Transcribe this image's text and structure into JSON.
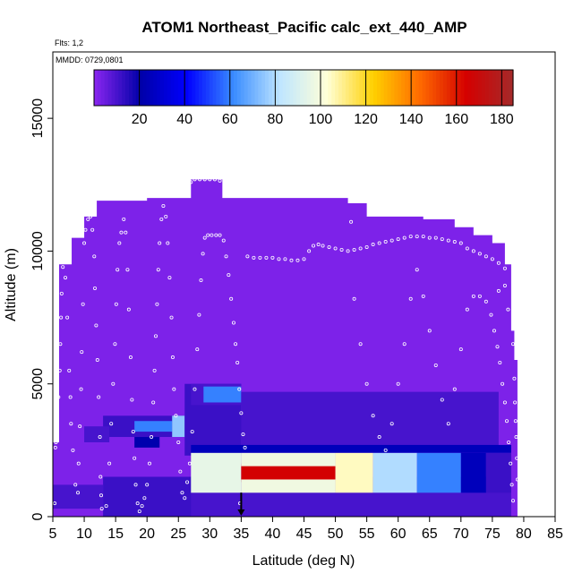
{
  "chart_data": {
    "type": "heatmap",
    "title": "ATOM1 Northeast_Pacific calc_ext_440_AMP",
    "annotations": {
      "flights": "Flts: 1,2",
      "dates": "MMDD: 0729,0801"
    },
    "xlabel": "Latitude (deg N)",
    "ylabel": "Altitude (m)",
    "xlim": [
      5,
      85
    ],
    "ylim": [
      0,
      17500
    ],
    "x_ticks": [
      5,
      10,
      15,
      20,
      25,
      30,
      35,
      40,
      45,
      50,
      55,
      60,
      65,
      70,
      75,
      80,
      85
    ],
    "y_ticks": [
      0,
      5000,
      10000,
      15000
    ],
    "colorbar": {
      "range": [
        0,
        185
      ],
      "ticks": [
        20,
        40,
        60,
        80,
        100,
        120,
        140,
        160,
        180
      ],
      "stops": [
        "#8b26f0",
        "#0000a8",
        "#0000ff",
        "#3a8cff",
        "#bfe6ff",
        "#ffffd8",
        "#ffd000",
        "#ff6a00",
        "#d40000",
        "#a52a2a"
      ]
    },
    "background_value": 2,
    "columns": [
      {
        "x": 5,
        "top": 2800
      },
      {
        "x": 6,
        "top": 9500
      },
      {
        "x": 8,
        "top": 10500
      },
      {
        "x": 10,
        "top": 11300
      },
      {
        "x": 12,
        "top": 11900
      },
      {
        "x": 20,
        "top": 12000
      },
      {
        "x": 27,
        "top": 12700
      },
      {
        "x": 32,
        "top": 12000
      },
      {
        "x": 52,
        "top": 11800
      },
      {
        "x": 55,
        "top": 11300
      },
      {
        "x": 64,
        "top": 11200
      },
      {
        "x": 69,
        "top": 10900
      },
      {
        "x": 72,
        "top": 10600
      },
      {
        "x": 75,
        "top": 10300
      },
      {
        "x": 77,
        "top": 9500
      },
      {
        "x": 78,
        "top": 7000
      },
      {
        "x": 78.5,
        "top": 5900
      },
      {
        "x": 79,
        "top": 0
      }
    ],
    "features": [
      {
        "x0": 13,
        "x1": 30,
        "y0": 0,
        "y1": 1500,
        "v": 12
      },
      {
        "x0": 13,
        "x1": 40,
        "y0": 3000,
        "y1": 3800,
        "v": 12
      },
      {
        "x0": 18,
        "x1": 22,
        "y0": 2600,
        "y1": 3000,
        "v": 22
      },
      {
        "x0": 18,
        "x1": 24,
        "y0": 3200,
        "y1": 3600,
        "v": 60
      },
      {
        "x0": 24,
        "x1": 26,
        "y0": 3000,
        "y1": 3800,
        "v": 75
      },
      {
        "x0": 26,
        "x1": 35,
        "y0": 2300,
        "y1": 5000,
        "v": 12
      },
      {
        "x0": 27,
        "x1": 35,
        "y0": 4200,
        "y1": 5000,
        "v": 10
      },
      {
        "x0": 29,
        "x1": 35,
        "y0": 4300,
        "y1": 4900,
        "v": 60
      },
      {
        "x0": 35,
        "x1": 76,
        "y0": 2500,
        "y1": 4700,
        "v": 10
      },
      {
        "x0": 27,
        "x1": 78,
        "y0": 2400,
        "y1": 2700,
        "v": 25
      },
      {
        "x0": 27,
        "x1": 78,
        "y0": 0,
        "y1": 1500,
        "v": 10
      },
      {
        "x0": 27,
        "x1": 35,
        "y0": 900,
        "y1": 2400,
        "v": 95
      },
      {
        "x0": 35,
        "x1": 50,
        "y0": 1300,
        "y1": 2000,
        "v": 165
      },
      {
        "x0": 35,
        "x1": 50,
        "y0": 1900,
        "y1": 2400,
        "v": 98
      },
      {
        "x0": 35,
        "x1": 50,
        "y0": 900,
        "y1": 1400,
        "v": 98
      },
      {
        "x0": 50,
        "x1": 56,
        "y0": 900,
        "y1": 2400,
        "v": 105
      },
      {
        "x0": 56,
        "x1": 63,
        "y0": 900,
        "y1": 2400,
        "v": 80
      },
      {
        "x0": 63,
        "x1": 70,
        "y0": 900,
        "y1": 2400,
        "v": 60
      },
      {
        "x0": 70,
        "x1": 74,
        "y0": 900,
        "y1": 2400,
        "v": 25
      },
      {
        "x0": 74,
        "x1": 78,
        "y0": 900,
        "y1": 2400,
        "v": 12
      },
      {
        "x0": 5,
        "x1": 13,
        "y0": 300,
        "y1": 1200,
        "v": 10
      },
      {
        "x0": 10,
        "x1": 14,
        "y0": 2800,
        "y1": 3400,
        "v": 10
      }
    ],
    "flight_track": [
      [
        5.3,
        500
      ],
      [
        5.4,
        2600
      ],
      [
        5.5,
        2800
      ],
      [
        5.7,
        3500
      ],
      [
        5.9,
        4500
      ],
      [
        6.1,
        5500
      ],
      [
        6.2,
        6500
      ],
      [
        6.3,
        7500
      ],
      [
        6.4,
        8400
      ],
      [
        6.6,
        9400
      ],
      [
        7.0,
        9000
      ],
      [
        7.3,
        7500
      ],
      [
        7.6,
        5500
      ],
      [
        7.8,
        4500
      ],
      [
        7.9,
        3500
      ],
      [
        8.2,
        2500
      ],
      [
        8.6,
        1200
      ],
      [
        9.0,
        900
      ],
      [
        9.1,
        2000
      ],
      [
        9.3,
        3400
      ],
      [
        9.5,
        4800
      ],
      [
        9.6,
        6200
      ],
      [
        9.8,
        8000
      ],
      [
        10.0,
        10300
      ],
      [
        10.2,
        10800
      ],
      [
        10.6,
        11200
      ],
      [
        11.0,
        11300
      ],
      [
        11.3,
        10800
      ],
      [
        11.6,
        9800
      ],
      [
        11.7,
        8600
      ],
      [
        11.9,
        7200
      ],
      [
        12.1,
        5900
      ],
      [
        12.3,
        4500
      ],
      [
        12.5,
        3000
      ],
      [
        12.6,
        1500
      ],
      [
        12.7,
        800
      ],
      [
        12.8,
        300
      ],
      [
        13.5,
        400
      ],
      [
        14.0,
        2000
      ],
      [
        14.3,
        3500
      ],
      [
        14.6,
        5000
      ],
      [
        14.9,
        6500
      ],
      [
        15.1,
        8000
      ],
      [
        15.3,
        9300
      ],
      [
        15.6,
        10300
      ],
      [
        15.9,
        10700
      ],
      [
        16.3,
        11200
      ],
      [
        16.6,
        10700
      ],
      [
        16.9,
        9300
      ],
      [
        17.1,
        7800
      ],
      [
        17.4,
        6000
      ],
      [
        17.6,
        4400
      ],
      [
        17.8,
        3200
      ],
      [
        18.0,
        2200
      ],
      [
        18.2,
        1200
      ],
      [
        18.5,
        500
      ],
      [
        18.8,
        200
      ],
      [
        19.2,
        400
      ],
      [
        19.6,
        700
      ],
      [
        20.0,
        1200
      ],
      [
        20.4,
        2000
      ],
      [
        20.7,
        3000
      ],
      [
        21.0,
        4300
      ],
      [
        21.2,
        5500
      ],
      [
        21.4,
        6800
      ],
      [
        21.6,
        8000
      ],
      [
        21.8,
        9300
      ],
      [
        22.0,
        10300
      ],
      [
        22.3,
        11200
      ],
      [
        22.6,
        11700
      ],
      [
        23.0,
        11300
      ],
      [
        23.3,
        10300
      ],
      [
        23.6,
        9000
      ],
      [
        23.9,
        7500
      ],
      [
        24.1,
        6000
      ],
      [
        24.3,
        4800
      ],
      [
        24.6,
        3800
      ],
      [
        25.0,
        2800
      ],
      [
        25.3,
        1700
      ],
      [
        25.6,
        900
      ],
      [
        26.0,
        700
      ],
      [
        26.4,
        1300
      ],
      [
        26.8,
        2000
      ],
      [
        27.2,
        3200
      ],
      [
        27.6,
        4800
      ],
      [
        28.0,
        6300
      ],
      [
        28.3,
        7600
      ],
      [
        28.6,
        8900
      ],
      [
        28.9,
        9900
      ],
      [
        29.2,
        10500
      ],
      [
        29.7,
        10600
      ],
      [
        30.3,
        10600
      ],
      [
        31.0,
        10600
      ],
      [
        31.6,
        10600
      ],
      [
        32.2,
        10400
      ],
      [
        32.6,
        9800
      ],
      [
        33.0,
        9100
      ],
      [
        33.4,
        8200
      ],
      [
        33.8,
        7300
      ],
      [
        34.1,
        6500
      ],
      [
        34.4,
        5800
      ],
      [
        34.7,
        4800
      ],
      [
        35.0,
        3900
      ],
      [
        35.3,
        3100
      ],
      [
        35.6,
        2600
      ],
      [
        34.8,
        500
      ],
      [
        27.0,
        12600
      ],
      [
        27.6,
        12700
      ],
      [
        28.4,
        12700
      ],
      [
        29.2,
        12700
      ],
      [
        30.0,
        12700
      ],
      [
        30.8,
        12700
      ],
      [
        31.6,
        12650
      ],
      [
        36.0,
        9800
      ],
      [
        37.0,
        9750
      ],
      [
        38.0,
        9750
      ],
      [
        39.0,
        9750
      ],
      [
        40.0,
        9750
      ],
      [
        41.0,
        9700
      ],
      [
        42.0,
        9700
      ],
      [
        43.0,
        9650
      ],
      [
        44.0,
        9650
      ],
      [
        45.0,
        9700
      ],
      [
        45.8,
        10000
      ],
      [
        46.5,
        10200
      ],
      [
        47.3,
        10250
      ],
      [
        48.0,
        10200
      ],
      [
        49.0,
        10150
      ],
      [
        50.0,
        10100
      ],
      [
        51.0,
        10050
      ],
      [
        52.0,
        10000
      ],
      [
        53.0,
        10050
      ],
      [
        54.0,
        10100
      ],
      [
        55.0,
        10150
      ],
      [
        56.0,
        10250
      ],
      [
        57.0,
        10300
      ],
      [
        58.0,
        10350
      ],
      [
        59.0,
        10400
      ],
      [
        60.0,
        10450
      ],
      [
        61.0,
        10500
      ],
      [
        62.0,
        10550
      ],
      [
        63.0,
        10550
      ],
      [
        64.0,
        10550
      ],
      [
        65.0,
        10500
      ],
      [
        66.0,
        10500
      ],
      [
        67.0,
        10450
      ],
      [
        68.0,
        10400
      ],
      [
        69.0,
        10350
      ],
      [
        70.0,
        10300
      ],
      [
        71.0,
        10100
      ],
      [
        72.0,
        10000
      ],
      [
        73.0,
        9900
      ],
      [
        74.0,
        9800
      ],
      [
        75.0,
        9700
      ],
      [
        76.0,
        9550
      ],
      [
        77.0,
        9350
      ],
      [
        52.5,
        11100
      ],
      [
        53.0,
        8200
      ],
      [
        54.0,
        6500
      ],
      [
        55.0,
        5000
      ],
      [
        56.0,
        3800
      ],
      [
        57.0,
        3000
      ],
      [
        58.0,
        2500
      ],
      [
        59.0,
        3500
      ],
      [
        60.0,
        5000
      ],
      [
        61.0,
        6500
      ],
      [
        62.0,
        8200
      ],
      [
        63.0,
        9300
      ],
      [
        64.0,
        8300
      ],
      [
        65.0,
        7000
      ],
      [
        66.0,
        5700
      ],
      [
        67.0,
        4400
      ],
      [
        68.0,
        3500
      ],
      [
        69.0,
        4800
      ],
      [
        70.0,
        6300
      ],
      [
        71.0,
        7800
      ],
      [
        72.0,
        8300
      ],
      [
        73.0,
        8300
      ],
      [
        74.0,
        8100
      ],
      [
        74.8,
        7600
      ],
      [
        75.3,
        7000
      ],
      [
        75.8,
        6400
      ],
      [
        76.2,
        5800
      ],
      [
        76.6,
        5000
      ],
      [
        77.0,
        4300
      ],
      [
        77.3,
        3600
      ],
      [
        77.6,
        2800
      ],
      [
        77.9,
        2000
      ],
      [
        78.1,
        1200
      ],
      [
        78.3,
        600
      ],
      [
        78.6,
        4300
      ],
      [
        78.7,
        3600
      ],
      [
        78.8,
        3000
      ],
      [
        78.9,
        2200
      ],
      [
        79.0,
        1400
      ],
      [
        78.5,
        5200
      ],
      [
        78.3,
        6500
      ],
      [
        77.5,
        7800
      ],
      [
        76.0,
        8500
      ],
      [
        77.0,
        8700
      ]
    ],
    "marker": {
      "x": 35,
      "y0": 500,
      "y1": 0
    }
  }
}
